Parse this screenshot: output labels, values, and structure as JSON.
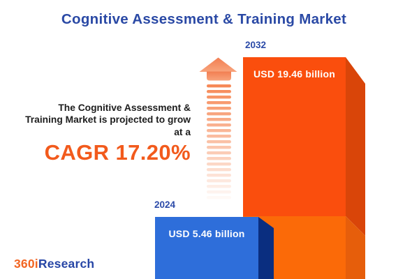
{
  "title": "Cognitive Assessment & Training Market",
  "description": {
    "lines": [
      "The Cognitive Assessment &",
      "Training Market is projected to grow",
      "at a"
    ],
    "cagr": "CAGR 17.20%"
  },
  "bars": {
    "y2024": {
      "year": "2024",
      "value_label": "USD 5.46 billion"
    },
    "y2032": {
      "year": "2032",
      "value_label": "USD 19.46 billion"
    }
  },
  "logo": {
    "part1": "360i",
    "part2": "Research"
  },
  "icons": {
    "arrow": "up-arrow-icon"
  },
  "colors": {
    "title_blue": "#2A49A5",
    "accent_orange": "#F25A1C",
    "text_dark": "#1D1D1D",
    "bar_2024_front": "#2E6EDA",
    "bar_2024_side": "#0A2E80",
    "bar_2032_front_top": "#FA4E0D",
    "bar_2032_front_bottom": "#FB6A08",
    "bar_2032_side_top": "#D94509",
    "bar_2032_side_bottom": "#E65E0B",
    "value_label_white": "#FFFFFF",
    "logo_orange": "#F26522",
    "logo_blue": "#2746A6",
    "arrow_head": "#F48B60",
    "arrow_dash": "#F6834E"
  },
  "chart_data": {
    "type": "bar",
    "title": "Cognitive Assessment & Training Market",
    "categories": [
      "2024",
      "2032"
    ],
    "values": [
      5.46,
      19.46
    ],
    "unit": "USD billion",
    "data_labels": [
      "USD 5.46 billion",
      "USD 19.46 billion"
    ],
    "cagr": "17.20%",
    "annotations": [
      "The Cognitive Assessment & Training Market is projected to grow at a CAGR 17.20%"
    ],
    "legend": "none",
    "grid": false,
    "axes_visible": false,
    "style": "3d-column-infographic, bars anchored to bottom edge"
  }
}
